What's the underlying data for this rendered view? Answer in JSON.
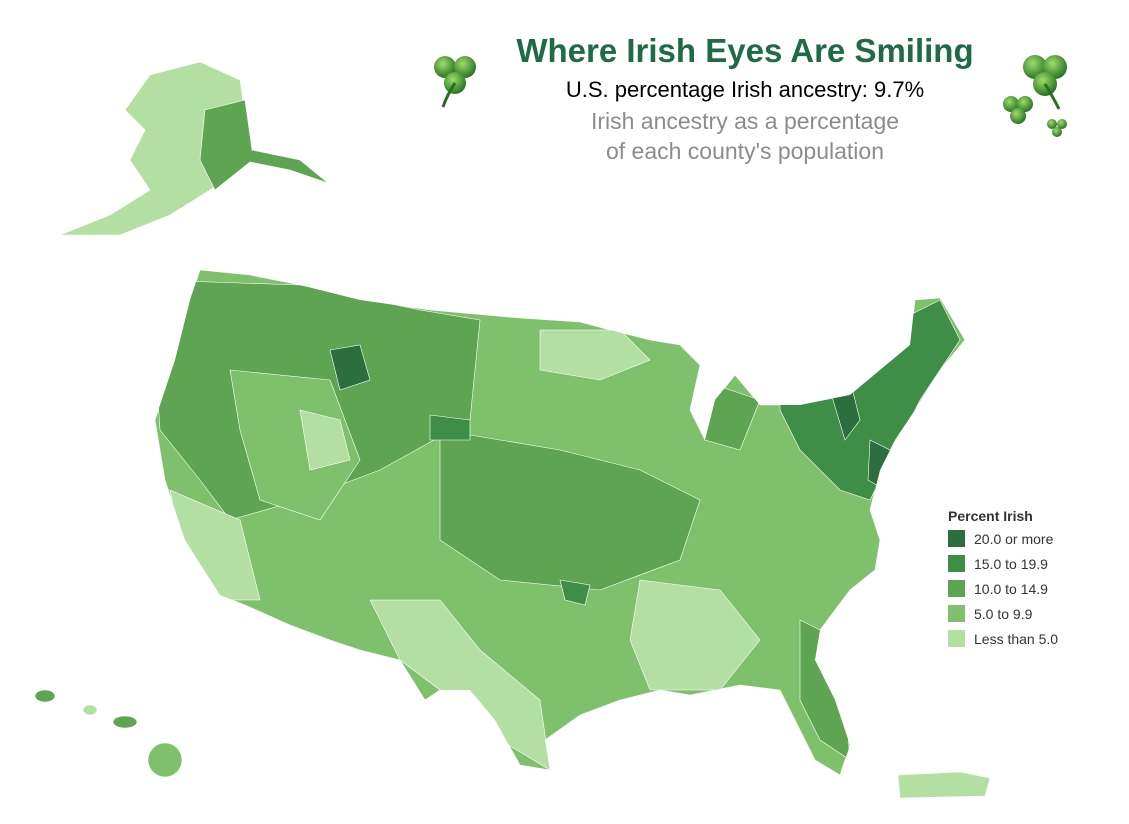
{
  "header": {
    "title": "Where Irish Eyes Are Smiling",
    "subtitle": "U.S. percentage Irish ancestry: 9.7%",
    "description": [
      "Irish ancestry as a percentage",
      "of each county's population"
    ]
  },
  "legend": {
    "title": "Percent Irish",
    "items": [
      {
        "label": "20.0 or more",
        "color": "#2d6e3e"
      },
      {
        "label": "15.0 to 19.9",
        "color": "#3f8e48"
      },
      {
        "label": "10.0 to 14.9",
        "color": "#5ea452"
      },
      {
        "label": "5.0 to 9.9",
        "color": "#7fc06d"
      },
      {
        "label": "Less than 5.0",
        "color": "#b3e0a2"
      }
    ]
  }
}
